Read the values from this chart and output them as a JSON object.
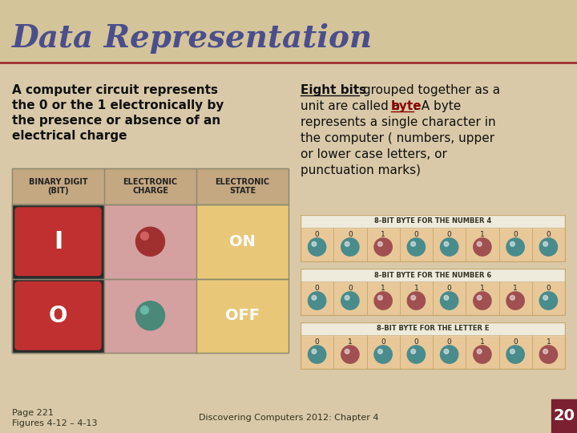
{
  "title": "Data Representation",
  "title_color": "#4B4E8C",
  "title_fontsize": 28,
  "bg_color": "#D9C9A8",
  "left_text_lines": [
    "A computer circuit represents",
    "the 0 or the 1 electronically by",
    "the presence or absence of an",
    "electrical charge"
  ],
  "table_header_bg": "#C4A882",
  "table_row1_bg": "#D4A0A0",
  "table_row2_bg": "#E8C898",
  "table_headers": [
    "BINARY DIGIT\n(BIT)",
    "ELECTRONIC\nCHARGE",
    "ELECTRONIC\nSTATE"
  ],
  "table_on_text": "ON",
  "table_off_text": "OFF",
  "byte_table_bg": "#E8C898",
  "byte_table_border": "#C8A870",
  "byte_label_4": "8-BIT BYTE FOR THE NUMBER 4",
  "byte_label_6": "8-BIT BYTE FOR THE NUMBER 6",
  "byte_label_E": "8-BIT BYTE FOR THE LETTER E",
  "byte_4": [
    0,
    0,
    1,
    0,
    0,
    1,
    0,
    0
  ],
  "byte_6": [
    0,
    0,
    1,
    1,
    0,
    1,
    1,
    0
  ],
  "byte_E": [
    0,
    1,
    0,
    0,
    0,
    1,
    0,
    1
  ],
  "bit_0_color": "#4A8B8B",
  "bit_1_color": "#A05050",
  "footer_left1": "Page 221",
  "footer_left2": "Figures 4-12 – 4-13",
  "footer_center": "Discovering Computers 2012: Chapter 4",
  "footer_page": "20",
  "footer_page_bg": "#7A2030",
  "red_line_color": "#A03030"
}
